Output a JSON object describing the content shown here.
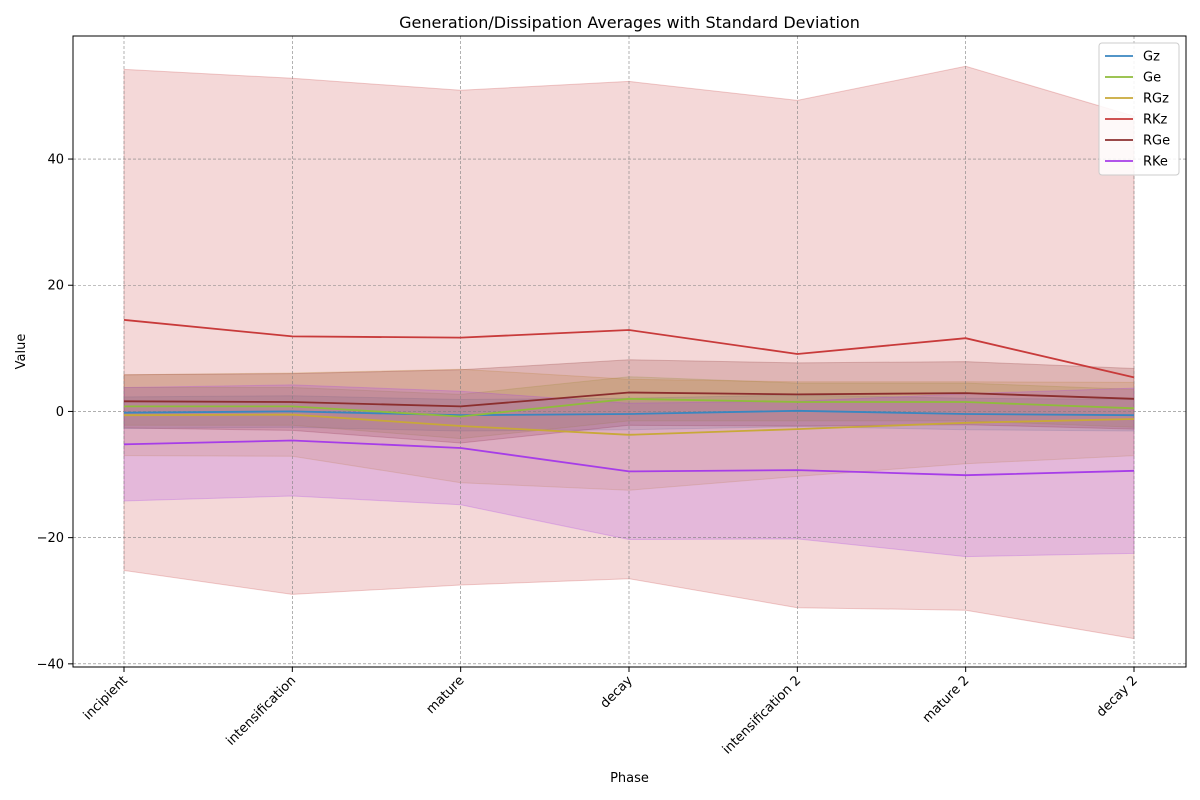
{
  "chart_data": {
    "type": "line",
    "title": "Generation/Dissipation Averages with Standard Deviation",
    "xlabel": "Phase",
    "ylabel": "Value",
    "categories": [
      "incipient",
      "intensification",
      "mature",
      "decay",
      "intensification 2",
      "mature 2",
      "decay 2"
    ],
    "ylim": [
      -40.5,
      59.5
    ],
    "yticks": [
      -40,
      -20,
      0,
      20,
      40
    ],
    "grid": true,
    "legend_position": "top-right",
    "series": [
      {
        "name": "Gz",
        "color": "#3a86c0",
        "values": [
          -0.2,
          0.0,
          -0.6,
          -0.4,
          0.1,
          -0.4,
          -0.6
        ],
        "std": [
          2.5,
          2.5,
          2.5,
          2.5,
          2.5,
          2.5,
          2.5
        ]
      },
      {
        "name": "Ge",
        "color": "#8fbc3b",
        "values": [
          0.8,
          0.8,
          -0.8,
          2.0,
          1.5,
          1.5,
          0.5
        ],
        "std": [
          3.0,
          3.0,
          3.5,
          3.5,
          3.0,
          3.0,
          3.0
        ]
      },
      {
        "name": "RGz",
        "color": "#c8a838",
        "values": [
          -0.6,
          -0.5,
          -2.3,
          -3.7,
          -2.8,
          -1.8,
          -1.2
        ],
        "std": [
          6.4,
          6.6,
          9.0,
          8.8,
          7.5,
          6.5,
          5.8
        ]
      },
      {
        "name": "RKz",
        "color": "#c83a3a",
        "values": [
          14.5,
          11.9,
          11.7,
          12.9,
          9.1,
          11.6,
          5.4
        ],
        "std": [
          39.7,
          40.9,
          39.2,
          39.4,
          40.2,
          43.1,
          41.4
        ]
      },
      {
        "name": "RGe",
        "color": "#8b2e2e",
        "values": [
          1.6,
          1.5,
          0.8,
          3.0,
          2.7,
          2.9,
          2.0
        ],
        "std": [
          4.2,
          4.5,
          5.8,
          5.2,
          5.0,
          5.0,
          4.8
        ]
      },
      {
        "name": "RKe",
        "color": "#a63de8",
        "values": [
          -5.2,
          -4.6,
          -5.8,
          -9.5,
          -9.3,
          -10.1,
          -9.4
        ],
        "std": [
          9.0,
          8.8,
          9.0,
          10.8,
          10.9,
          12.9,
          13.1
        ]
      }
    ]
  }
}
